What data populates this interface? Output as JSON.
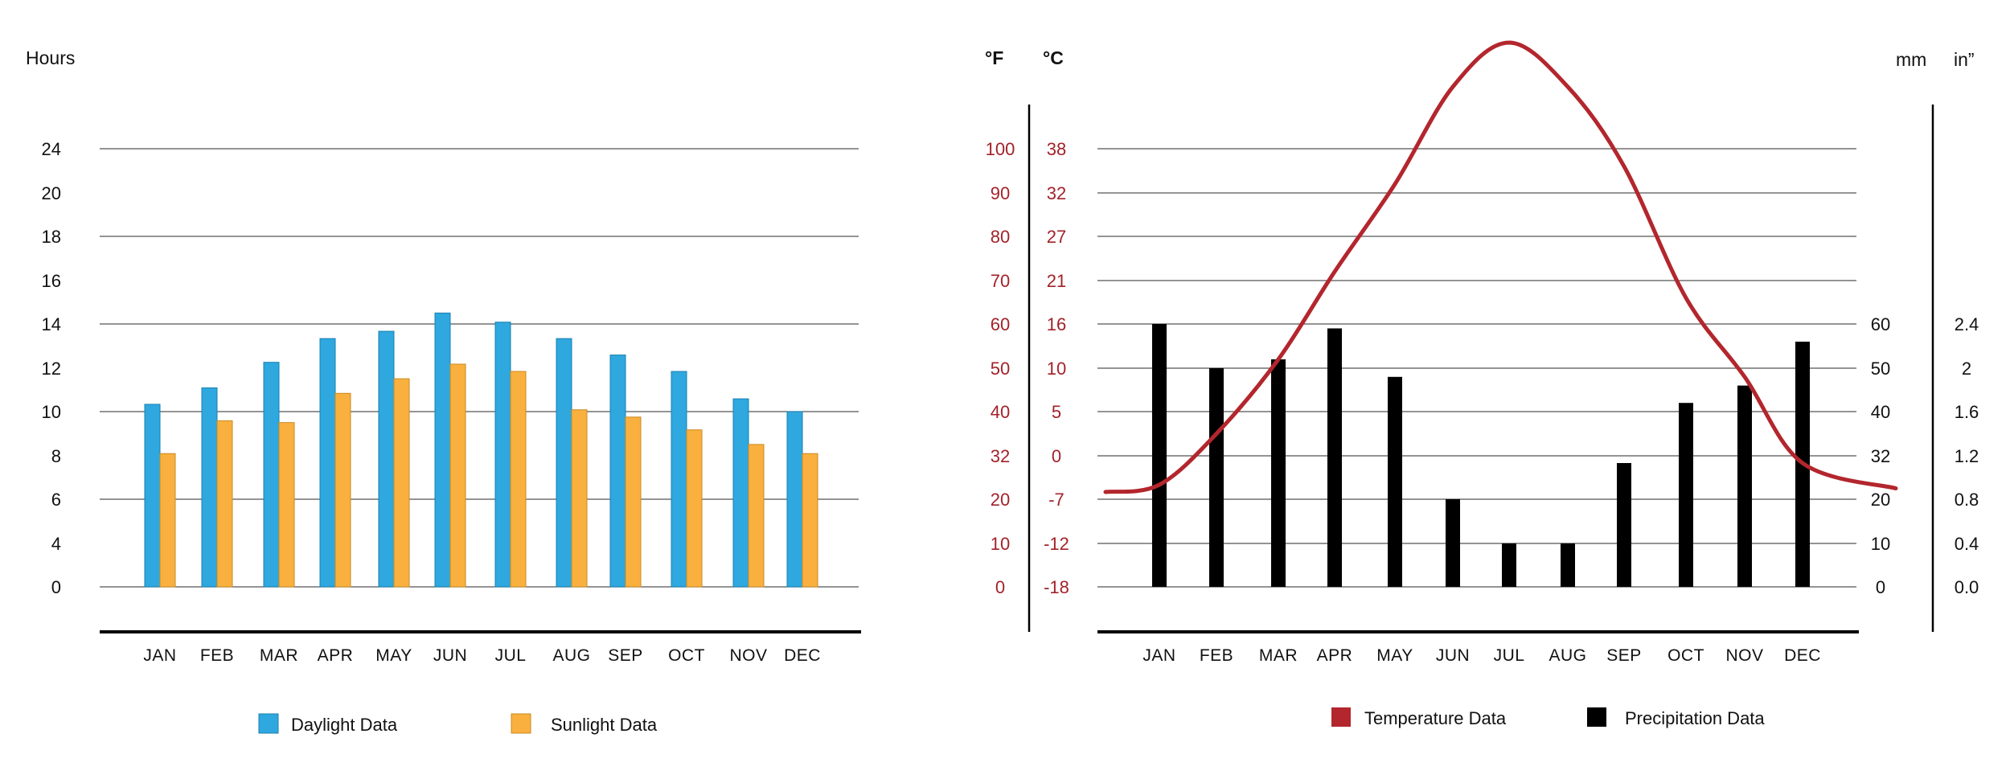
{
  "months": [
    "JAN",
    "FEB",
    "MAR",
    "APR",
    "MAY",
    "JUN",
    "JUL",
    "AUG",
    "SEP",
    "OCT",
    "NOV",
    "DEC"
  ],
  "colors": {
    "daylight": "#2ea8df",
    "sunlight": "#f9b03f",
    "temperature": "#b3262d",
    "precipitation": "#000000",
    "grid": "#555555",
    "axis_red_text": "#a3222a"
  },
  "chart_data": [
    {
      "type": "bar",
      "title": "",
      "ylabel": "Hours",
      "xlabel": "",
      "categories": [
        "JAN",
        "FEB",
        "MAR",
        "APR",
        "MAY",
        "JUN",
        "JUL",
        "AUG",
        "SEP",
        "OCT",
        "NOV",
        "DEC"
      ],
      "y_ticks": [
        "0",
        "4",
        "6",
        "8",
        "10",
        "12",
        "14",
        "16",
        "18",
        "20",
        "24"
      ],
      "ylim": [
        0,
        24
      ],
      "grid": true,
      "series": [
        {
          "name": "Daylight Data",
          "values": [
            10.0,
            10.9,
            12.3,
            13.6,
            14.0,
            15.0,
            14.5,
            13.6,
            12.7,
            11.8,
            10.3,
            9.6
          ]
        },
        {
          "name": "Sunlight Data",
          "values": [
            7.3,
            9.1,
            9.0,
            10.6,
            11.4,
            12.2,
            11.8,
            9.7,
            9.3,
            8.6,
            7.8,
            7.3
          ]
        }
      ],
      "legend": [
        "Daylight Data",
        "Sunlight Data"
      ],
      "legend_position": "bottom-center"
    },
    {
      "type": "line+bar",
      "title": "",
      "xlabel": "",
      "categories": [
        "JAN",
        "FEB",
        "MAR",
        "APR",
        "MAY",
        "JUN",
        "JUL",
        "AUG",
        "SEP",
        "OCT",
        "NOV",
        "DEC"
      ],
      "left_axes": {
        "fahrenheit_label": "°F",
        "celsius_label": "°C",
        "fahrenheit_ticks": [
          "0",
          "10",
          "20",
          "32",
          "40",
          "50",
          "60",
          "70",
          "80",
          "90",
          "100"
        ],
        "celsius_ticks": [
          "-18",
          "-12",
          "-7",
          "0",
          "5",
          "10",
          "16",
          "21",
          "27",
          "32",
          "38"
        ]
      },
      "right_axes": {
        "mm_label": "mm",
        "in_label": "in”",
        "mm_ticks": [
          "0",
          "10",
          "20",
          "32",
          "40",
          "50",
          "60"
        ],
        "in_ticks": [
          "0.0",
          "0.4",
          "0.8",
          "1.2",
          "1.6",
          "2",
          "2.4"
        ]
      },
      "series": [
        {
          "name": "Temperature Data",
          "kind": "line",
          "unit": "°F",
          "values": [
            24,
            36,
            52,
            72,
            92,
            114,
            124,
            114,
            96,
            66,
            48,
            30
          ]
        },
        {
          "name": "Precipitation Data",
          "kind": "bar",
          "unit": "mm",
          "values": [
            60,
            50,
            52,
            59,
            48,
            20,
            10,
            10,
            30,
            42,
            46,
            56
          ]
        }
      ],
      "legend": [
        "Temperature Data",
        "Precipitation Data"
      ],
      "legend_position": "bottom-center"
    }
  ]
}
